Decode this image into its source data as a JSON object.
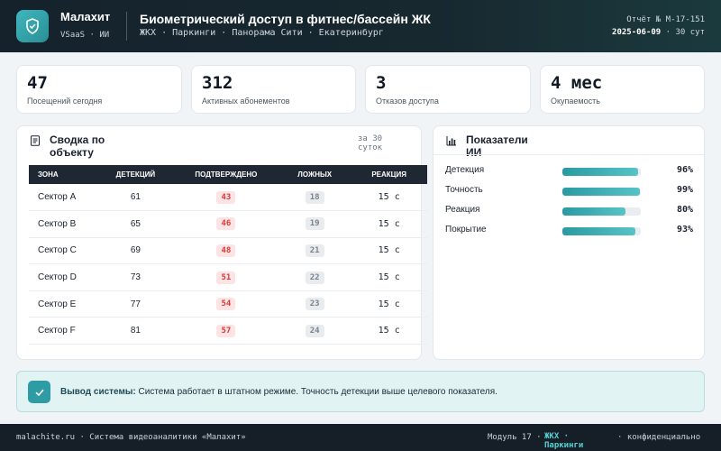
{
  "header": {
    "brand": "Малахит",
    "brand_sub": "VSaaS · ИИ",
    "title": "Биометрический доступ в фитнес/бассейн ЖК",
    "subtitle": "ЖКХ · Паркинги · Панорама Сити · Екатеринбург",
    "report_id": "Отчёт № М-17-151",
    "report_date": "2025-06-09",
    "report_period": " · 30 сут"
  },
  "kpis": [
    {
      "value": "47",
      "label": "Посещений сегодня"
    },
    {
      "value": "312",
      "label": "Активных абонементов"
    },
    {
      "value": "3",
      "label": "Отказов доступа"
    },
    {
      "value": "4 мес",
      "label": "Окупаемость"
    }
  ],
  "summary": {
    "title": "Сводка по объекту",
    "period_note": "за 30 суток",
    "columns": [
      "Зона",
      "Детекций",
      "Подтверждено",
      "Ложных",
      "Реакция"
    ],
    "rows": [
      {
        "zone": "Сектор A",
        "detections": "61",
        "confirmed": "43",
        "false": "18",
        "reaction": "15 с"
      },
      {
        "zone": "Сектор B",
        "detections": "65",
        "confirmed": "46",
        "false": "19",
        "reaction": "15 с"
      },
      {
        "zone": "Сектор C",
        "detections": "69",
        "confirmed": "48",
        "false": "21",
        "reaction": "15 с"
      },
      {
        "zone": "Сектор D",
        "detections": "73",
        "confirmed": "51",
        "false": "22",
        "reaction": "15 с"
      },
      {
        "zone": "Сектор E",
        "detections": "77",
        "confirmed": "54",
        "false": "23",
        "reaction": "15 с"
      },
      {
        "zone": "Сектор F",
        "detections": "81",
        "confirmed": "57",
        "false": "24",
        "reaction": "15 с"
      }
    ]
  },
  "ai": {
    "title": "Показатели ИИ",
    "metrics": [
      {
        "label": "Детекция",
        "value": "96%",
        "percent": 96
      },
      {
        "label": "Точность",
        "value": "99%",
        "percent": 99
      },
      {
        "label": "Реакция",
        "value": "80%",
        "percent": 80
      },
      {
        "label": "Покрытие",
        "value": "93%",
        "percent": 93
      }
    ]
  },
  "conclusion": {
    "label": "Вывод системы:",
    "text": " Система работает в штатном режиме. Точность детекции выше целевого показателя."
  },
  "footer": {
    "left": "malachite.ru · Система видеоаналитики «Малахит»",
    "module": "Модуль 17 ·",
    "highlight": "ЖКХ · Паркинги",
    "right": "· конфиденциально"
  },
  "colors": {
    "accent": "#2f9ba4",
    "header_bg": "#15222c",
    "confirmed_pill": "#d43c3c",
    "false_pill": "#7a848d"
  },
  "icons": {
    "logo": "shield-check-icon",
    "summary": "document-icon",
    "ai": "bar-chart-icon",
    "conclusion": "check-icon"
  }
}
